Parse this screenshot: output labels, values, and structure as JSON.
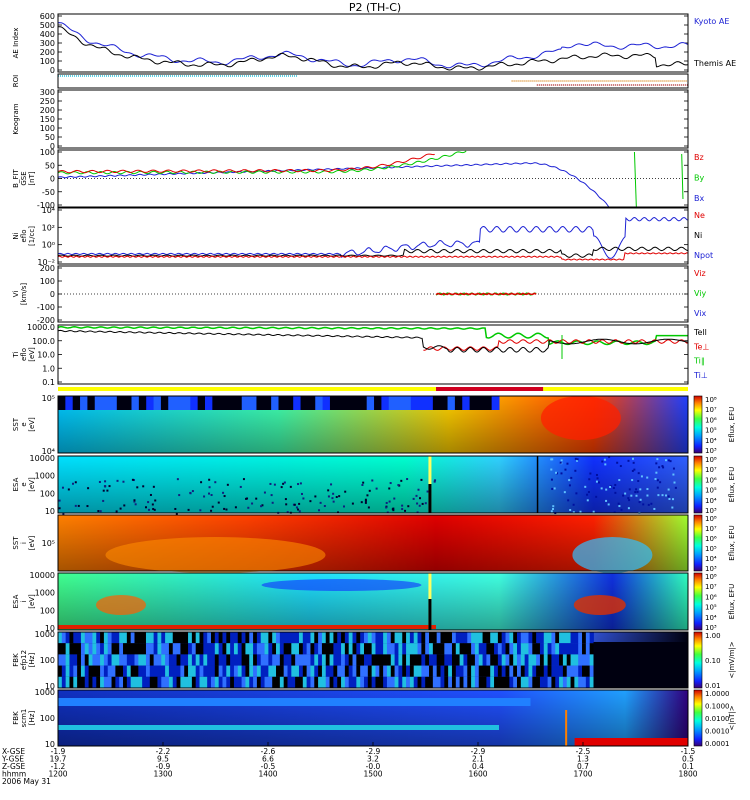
{
  "title": "P2 (TH-C)",
  "date_label": "2006 May 31",
  "footer_row_labels": [
    "X-GSE",
    "Y-GSE",
    "Z-GSE",
    "hhmm"
  ],
  "footer_columns": [
    {
      "hhmm": "1200",
      "x": "-1.9",
      "y": "19.7",
      "z": "-1.2"
    },
    {
      "hhmm": "1300",
      "x": "-2.2",
      "y": "9.5",
      "z": "-0.9"
    },
    {
      "hhmm": "1400",
      "x": "-2.6",
      "y": "6.6",
      "z": "-0.5"
    },
    {
      "hhmm": "1500",
      "x": "-2.9",
      "y": "3.2",
      "z": "-0.0"
    },
    {
      "hhmm": "1600",
      "x": "-2.9",
      "y": "2.1",
      "z": "0.4"
    },
    {
      "hhmm": "1700",
      "x": "-2.5",
      "y": "1.3",
      "z": "0.7"
    },
    {
      "hhmm": "1800",
      "x": "-1.5",
      "y": "0.5",
      "z": "0.1"
    }
  ],
  "colors": {
    "black": "#000000",
    "blue": "#1d22d4",
    "green": "#00c800",
    "red": "#e00000",
    "cyan": "#00b4d2",
    "orange": "#d27800",
    "dark_red": "#a00000",
    "tail_line": "#cc0000"
  },
  "chart_data": [
    {
      "type": "line",
      "panel": "ae",
      "ylabel": "AE Index",
      "ylim": [
        0,
        600
      ],
      "ticks": [
        "0",
        "100",
        "200",
        "300",
        "400",
        "500",
        "600"
      ],
      "series": [
        {
          "name": "Kyoto AE"
        },
        {
          "name": "Themis AE"
        }
      ]
    },
    {
      "type": "line",
      "panel": "roi",
      "ylabel": "ROI",
      "ticks": []
    },
    {
      "type": "heatmap",
      "panel": "keogram",
      "ylabel": "Keogram",
      "ylim": [
        0,
        300
      ],
      "ticks": [
        "0",
        "50",
        "100",
        "150",
        "200",
        "250",
        "300"
      ]
    },
    {
      "type": "line",
      "panel": "bfit",
      "ylabel": "B_FIT",
      "ylabel2": "GSE",
      "unit": "[nT]",
      "ylim": [
        -100,
        100
      ],
      "ticks": [
        "-100",
        "-50",
        "0",
        "50",
        "100"
      ],
      "series": [
        {
          "name": "Bz"
        },
        {
          "name": "By"
        },
        {
          "name": "Bx"
        }
      ]
    },
    {
      "type": "line",
      "panel": "ni",
      "ylabel": "Ni",
      "ylabel2": "eflo",
      "unit": "[1/cc]",
      "ticks": [
        "10⁻²",
        "10⁰",
        "10²",
        "10⁴"
      ],
      "series": [
        {
          "name": "Ne"
        },
        {
          "name": "Ni"
        },
        {
          "name": "Npot"
        }
      ]
    },
    {
      "type": "line",
      "panel": "vi",
      "ylabel": "Vi",
      "unit": "[km/s]",
      "ylim": [
        -200,
        200
      ],
      "ticks": [
        "-200",
        "-100",
        "0",
        "100",
        "200"
      ],
      "series": [
        {
          "name": "Viz"
        },
        {
          "name": "Viy"
        },
        {
          "name": "Vix"
        }
      ]
    },
    {
      "type": "line",
      "panel": "ti",
      "ylabel": "Ti",
      "ylabel2": "eflo",
      "unit": "[eV]",
      "ticks": [
        "0.1",
        "1.0",
        "10.0",
        "100.0",
        "1000.0"
      ],
      "series": [
        {
          "name": "Tell"
        },
        {
          "name": "Te⊥"
        },
        {
          "name": "Ti∥"
        },
        {
          "name": "Ti⊥"
        }
      ]
    },
    {
      "type": "heatmap",
      "panel": "sst_e",
      "ylabel": "SST",
      "ylabel2": "e",
      "unit": "[eV]",
      "ticks": [
        "10⁴",
        "10⁵"
      ],
      "cbar_label": "Eflux, EFU"
    },
    {
      "type": "heatmap",
      "panel": "esa_e",
      "ylabel": "ESA",
      "ylabel2": "e",
      "unit": "[eV]",
      "ticks": [
        "10",
        "100",
        "1000",
        "10000"
      ],
      "cbar_label": "Eflux, EFU"
    },
    {
      "type": "heatmap",
      "panel": "sst_i",
      "ylabel": "SST",
      "ylabel2": "i",
      "unit": "[eV]",
      "ticks": [
        "10⁵"
      ],
      "cbar_label": "Eflux, EFU"
    },
    {
      "type": "heatmap",
      "panel": "esa_i",
      "ylabel": "ESA",
      "ylabel2": "i",
      "unit": "[eV]",
      "ticks": [
        "10",
        "100",
        "1000",
        "10000"
      ],
      "cbar_label": "Eflux, EFU"
    },
    {
      "type": "heatmap",
      "panel": "fbk1",
      "ylabel": "FBK",
      "ylabel2": "efp12",
      "unit": "[Hz]",
      "ticks": [
        "10",
        "100",
        "1000"
      ],
      "cbar_label": "<|mV/m|>",
      "cbar_ticks": [
        "0.01",
        "0.10",
        "1.00"
      ]
    },
    {
      "type": "heatmap",
      "panel": "fbk2",
      "ylabel": "FBK",
      "ylabel2": "scm1",
      "unit": "[Hz]",
      "ticks": [
        "10",
        "100",
        "1000"
      ],
      "cbar_label": "<|nT|>",
      "cbar_ticks": [
        "0.0001",
        "0.0010",
        "0.0100",
        "0.1000",
        "1.0000"
      ]
    }
  ],
  "colorbar_eflux_ticks": [
    "10³",
    "10⁴",
    "10⁵",
    "10⁶",
    "10⁷",
    "10⁸"
  ]
}
